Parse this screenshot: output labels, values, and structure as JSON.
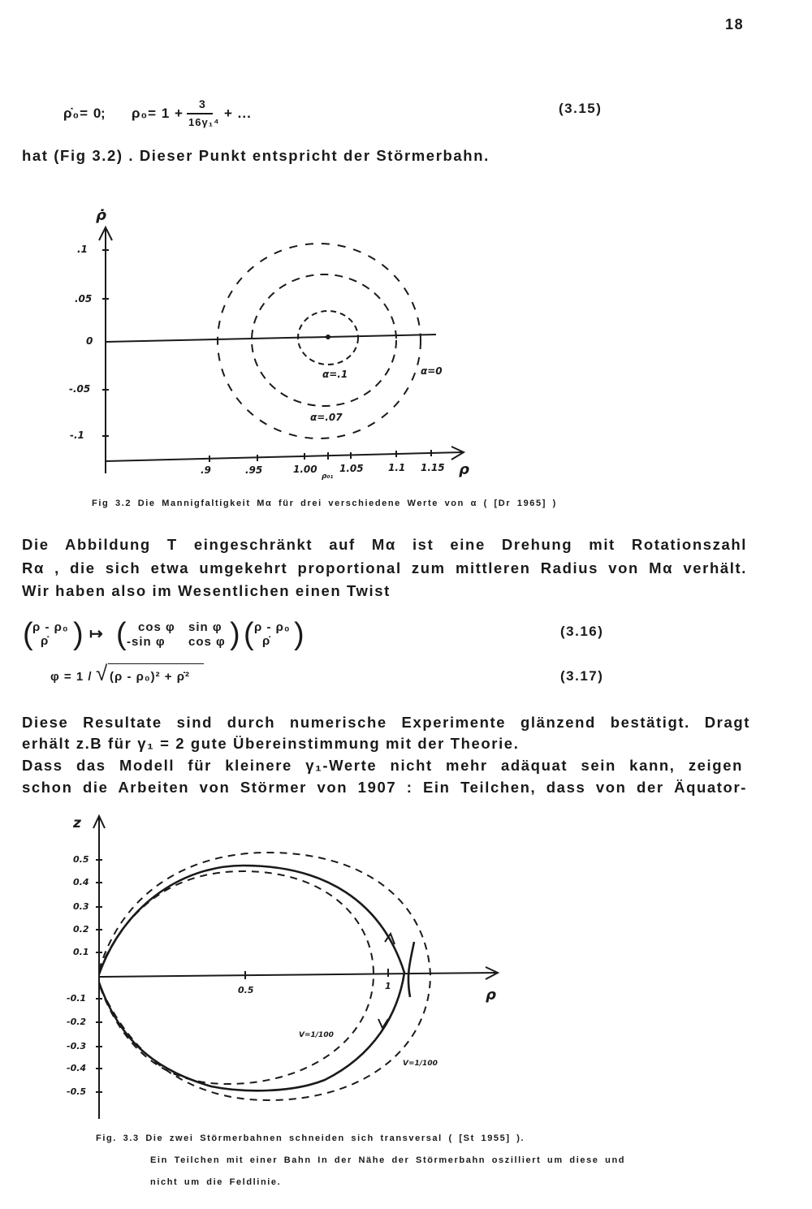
{
  "page_number": "18",
  "eq_3_15": {
    "lhs": "ρ̇₀= 0",
    "sep": ";",
    "rhs_start": "ρ₀= 1 +",
    "frac_num": "3",
    "frac_den": "16γ₁⁴",
    "rhs_end": "+ ...",
    "label": "(3.15)"
  },
  "line_after_eq": "hat (Fig 3.2) . Dieser Punkt entspricht der Störmerbahn.",
  "fig32": {
    "y_axis_label": "ρ̇",
    "x_axis_label": "ρ",
    "y_ticks": [
      ".1",
      ".05",
      "0",
      "-.05",
      "-.1"
    ],
    "x_ticks": [
      ".9",
      ".95",
      "1.00",
      "1.05",
      "1.1",
      "1.15"
    ],
    "center_label": "ρ₀₁",
    "curve_labels": [
      "α=.1",
      "α=.07",
      "α=0"
    ],
    "caption": "Fig 3.2  Die Mannigfaltigkeit Mα für drei verschiedene Werte von α ( [Dr 1965] )"
  },
  "para1": [
    "Die Abbildung T eingeschränkt auf Mα  ist eine Drehung mit Rotationszahl",
    "Rα , die sich etwa umgekehrt proportional zum mittleren Radius von Mα verhält.",
    "Wir haben also im Wesentlichen einen Twist"
  ],
  "eq_3_16": {
    "vec_top": "ρ - ρ₀",
    "vec_bottom": "ρ̇",
    "arrow": "↦",
    "m11": "cos φ",
    "m12": "sin φ",
    "m21": "-sin φ",
    "m22": "cos φ",
    "label": "(3.16)"
  },
  "eq_3_17": {
    "lhs": "φ = 1 /",
    "radicand": "(ρ - ρ₀)² + ρ̇²",
    "label": "(3.17)"
  },
  "para2": [
    "Diese Resultate sind durch numerische Experimente glänzend bestätigt. Dragt",
    "erhält z.B  für  γ₁ = 2  gute Übereinstimmung mit der Theorie.",
    "Dass das Modell  für kleinere γ₁-Werte nicht mehr adäquat sein kann, zeigen",
    "schon die Arbeiten von Störmer von 1907 : Ein Teilchen, dass von der Äquator-"
  ],
  "fig33": {
    "y_axis_label": "z",
    "x_axis_label": "ρ",
    "y_ticks": [
      "0.5",
      "0.4",
      "0.3",
      "0.2",
      "0.1",
      "-0.1",
      "-0.2",
      "-0.3",
      "-0.4",
      "-0.5"
    ],
    "x_ticks": [
      "0.5",
      "1"
    ],
    "curve_labels": [
      "V=1/100",
      "V=1/100"
    ],
    "caption_lines": [
      "Fig.  3.3  Die zwei Störmerbahnen schneiden sich transversal  ( [St 1955] ).",
      "Ein Teilchen mit einer Bahn In der Nähe der Störmerbahn oszilliert um diese und",
      "nicht um die Feldlinie."
    ]
  }
}
